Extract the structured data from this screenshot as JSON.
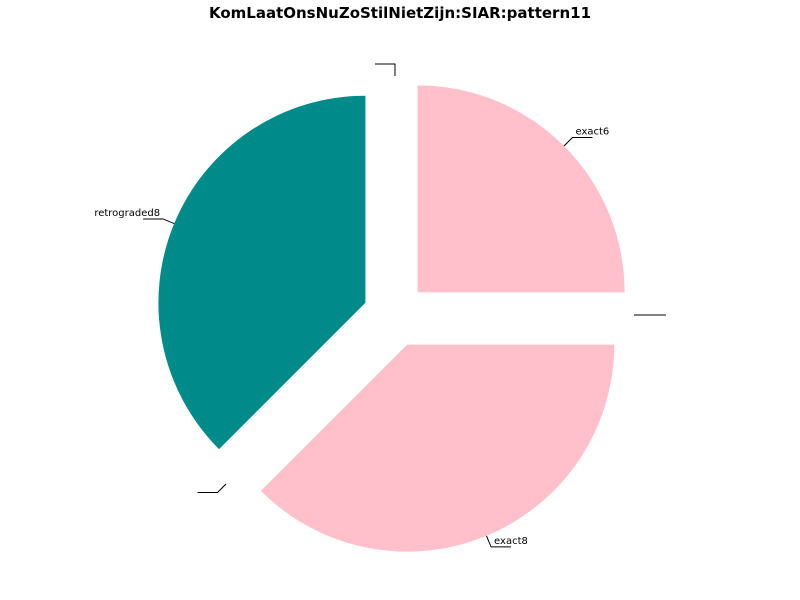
{
  "chart_data": {
    "type": "pie",
    "title": "KomLaatOnsNuZoStilNietZijn:SIAR:pattern11",
    "slices": [
      {
        "label": "exact6",
        "value": 25,
        "color": "#ffc0cb"
      },
      {
        "label": "",
        "value": 0,
        "color": "#ffc0cb"
      },
      {
        "label": "exact8",
        "value": 37.5,
        "color": "#ffc0cb"
      },
      {
        "label": "",
        "value": 0,
        "color": "#008b8b"
      },
      {
        "label": "retrograded8",
        "value": 37.5,
        "color": "#008b8b"
      },
      {
        "label": "",
        "value": 0,
        "color": "#008b8b"
      }
    ],
    "start_angle_deg": 90,
    "direction": "clockwise",
    "exploded": true,
    "legend": "none"
  }
}
